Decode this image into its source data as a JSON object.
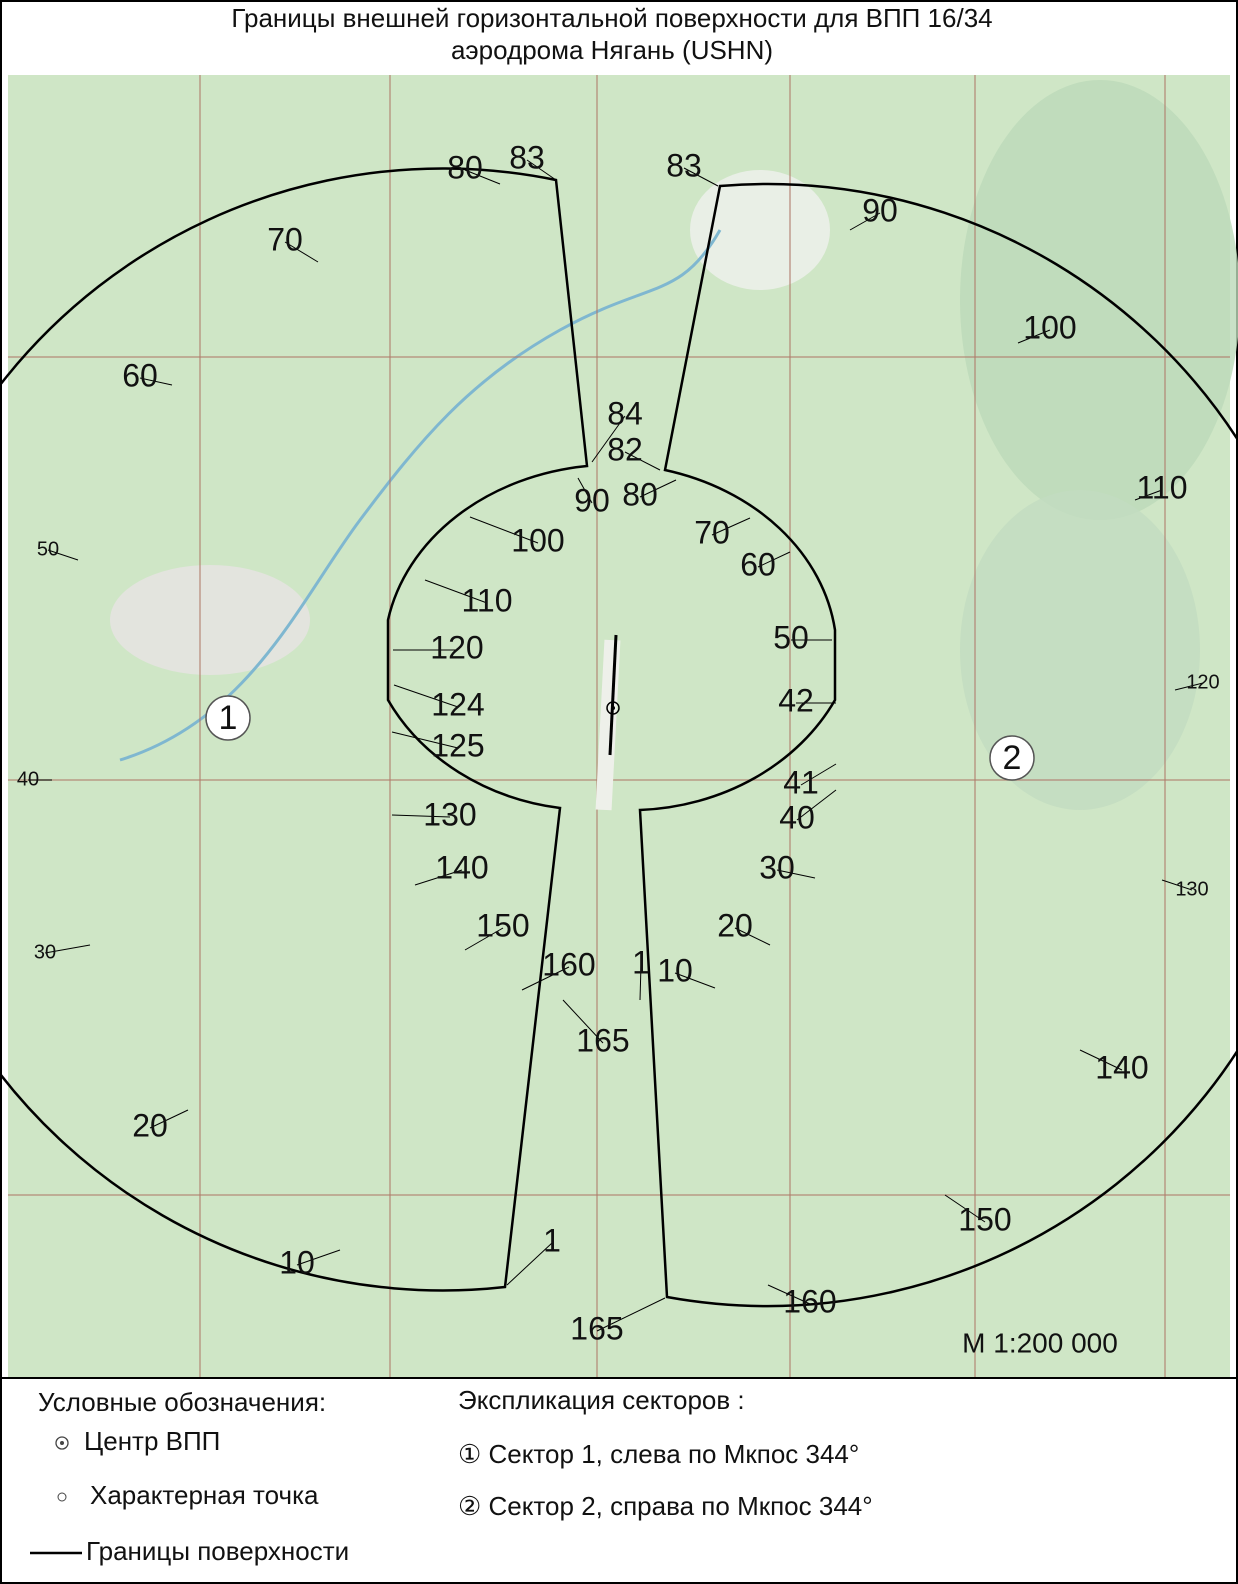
{
  "title": [
    "Границы внешней горизонтальной поверхности для ВПП 16/34",
    "аэродрома Нягань (USHN)"
  ],
  "map": {
    "point_labels": [
      80,
      83,
      70,
      60,
      50,
      40,
      30,
      20,
      10,
      1,
      165,
      160,
      150,
      140,
      130,
      120,
      110,
      100,
      90,
      83,
      84,
      82,
      90,
      80,
      100,
      70,
      110,
      60,
      120,
      50,
      124,
      42,
      125,
      41,
      130,
      40,
      140,
      30,
      150,
      20,
      160,
      1,
      10,
      165
    ],
    "sectors": [
      1,
      2
    ],
    "scale": "М 1:200 000"
  },
  "legend": {
    "title": "Условные обозначения:",
    "items": [
      "Центр ВПП",
      "Характерная точка",
      "Границы поверхности"
    ]
  },
  "explication": {
    "title": "Экспликация секторов :",
    "items": [
      "① Сектор 1, слева по Мкпос 344°",
      "② Сектор 2, справа по Мкпос 344°"
    ]
  }
}
